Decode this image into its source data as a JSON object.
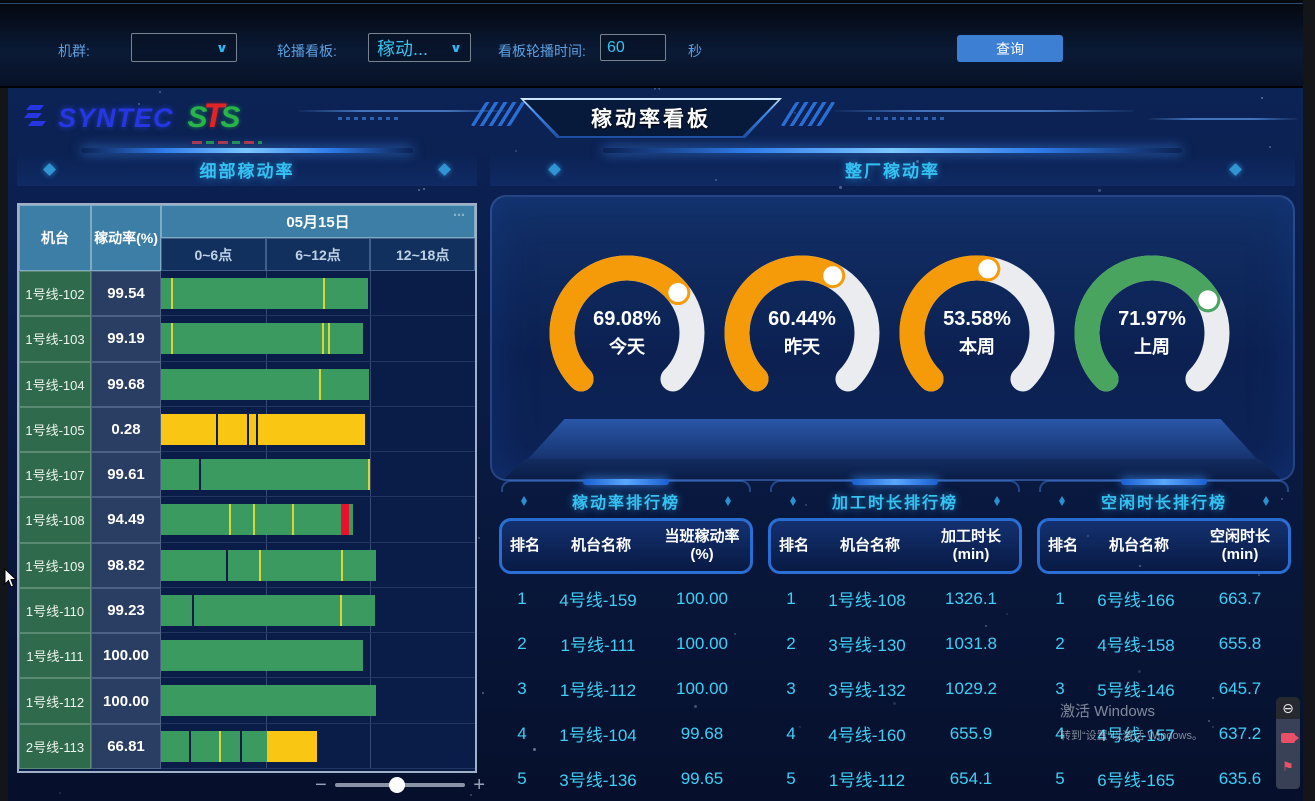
{
  "topbar": {
    "cluster_label": "机群:",
    "cluster_value": "",
    "carousel_label": "轮播看板:",
    "carousel_value": "稼动...",
    "interval_label": "看板轮播时间:",
    "interval_value": "60",
    "interval_unit": "秒",
    "query_button": "查询"
  },
  "header": {
    "logo_syntec": "SYNTEC",
    "logo_sts_s1": "S",
    "logo_sts_t": "T",
    "logo_sts_s2": "S",
    "title": "稼动率看板",
    "collapse_icon": "^"
  },
  "left_panel": {
    "section_title": "细部稼动率",
    "table": {
      "col_machine": "机台",
      "col_rate": "稼动率(%)",
      "date_header": "05月15日",
      "more_icon": "⋯",
      "time_cols": [
        "0~6点",
        "6~12点",
        "12~18点"
      ],
      "timeline_hours": 18,
      "rows": [
        {
          "machine": "1号线-102",
          "rate": "99.54",
          "segments": [
            {
              "c": "green",
              "f": 0,
              "t": 11.85
            }
          ],
          "ticks": [
            {
              "x": 0.55,
              "c": "yellow"
            },
            {
              "x": 9.3,
              "c": "yellow"
            }
          ]
        },
        {
          "machine": "1号线-103",
          "rate": "99.19",
          "segments": [
            {
              "c": "green",
              "f": 0,
              "t": 11.6
            }
          ],
          "ticks": [
            {
              "x": 0.55,
              "c": "yellow"
            },
            {
              "x": 9.25,
              "c": "yellow"
            },
            {
              "x": 9.55,
              "c": "yellow"
            }
          ]
        },
        {
          "machine": "1号线-104",
          "rate": "99.68",
          "segments": [
            {
              "c": "green",
              "f": 0,
              "t": 11.9
            }
          ],
          "ticks": [
            {
              "x": 9.05,
              "c": "yellow"
            }
          ]
        },
        {
          "machine": "1号线-105",
          "rate": "0.28",
          "segments": [
            {
              "c": "yellow",
              "f": 0,
              "t": 11.7
            }
          ],
          "ticks": [
            {
              "x": 3.15,
              "c": "dark"
            },
            {
              "x": 4.95,
              "c": "dark"
            },
            {
              "x": 5.45,
              "c": "dark"
            }
          ]
        },
        {
          "machine": "1号线-107",
          "rate": "99.61",
          "segments": [
            {
              "c": "green",
              "f": 0,
              "t": 12.0
            }
          ],
          "ticks": [
            {
              "x": 2.2,
              "c": "dark"
            },
            {
              "x": 11.85,
              "c": "yellow"
            }
          ]
        },
        {
          "machine": "1号线-108",
          "rate": "94.49",
          "segments": [
            {
              "c": "green",
              "f": 0,
              "t": 10.3
            },
            {
              "c": "red",
              "f": 10.3,
              "t": 10.8
            },
            {
              "c": "green",
              "f": 10.8,
              "t": 11.0
            }
          ],
          "ticks": [
            {
              "x": 3.9,
              "c": "yellow"
            },
            {
              "x": 5.3,
              "c": "yellow"
            },
            {
              "x": 7.5,
              "c": "yellow"
            }
          ]
        },
        {
          "machine": "1号线-109",
          "rate": "98.82",
          "segments": [
            {
              "c": "green",
              "f": 0,
              "t": 12.3
            }
          ],
          "ticks": [
            {
              "x": 3.7,
              "c": "dark"
            },
            {
              "x": 5.6,
              "c": "yellow"
            },
            {
              "x": 10.3,
              "c": "yellow"
            }
          ]
        },
        {
          "machine": "1号线-110",
          "rate": "99.23",
          "segments": [
            {
              "c": "green",
              "f": 0,
              "t": 12.25
            }
          ],
          "ticks": [
            {
              "x": 1.75,
              "c": "dark"
            },
            {
              "x": 10.25,
              "c": "yellow"
            }
          ]
        },
        {
          "machine": "1号线-111",
          "rate": "100.00",
          "segments": [
            {
              "c": "green",
              "f": 0,
              "t": 11.6
            }
          ],
          "ticks": []
        },
        {
          "machine": "1号线-112",
          "rate": "100.00",
          "segments": [
            {
              "c": "green",
              "f": 0,
              "t": 12.35
            }
          ],
          "ticks": []
        },
        {
          "machine": "2号线-113",
          "rate": "66.81",
          "segments": [
            {
              "c": "green",
              "f": 0,
              "t": 6.05
            },
            {
              "c": "yellow",
              "f": 6.05,
              "t": 8.95
            }
          ],
          "ticks": [
            {
              "x": 1.6,
              "c": "dark"
            },
            {
              "x": 3.3,
              "c": "yellow"
            },
            {
              "x": 4.5,
              "c": "dark"
            }
          ]
        }
      ]
    },
    "slider": {
      "zoom_out": "−",
      "zoom_in": "+",
      "position_percent": 48
    }
  },
  "right_panel": {
    "section_title": "整厂稼动率",
    "gauges": [
      {
        "value": "69.08%",
        "label": "今天",
        "percent": 69.08,
        "color": "#F59B0A"
      },
      {
        "value": "60.44%",
        "label": "昨天",
        "percent": 60.44,
        "color": "#F59B0A"
      },
      {
        "value": "53.58%",
        "label": "本周",
        "percent": 53.58,
        "color": "#F59B0A"
      },
      {
        "value": "71.97%",
        "label": "上周",
        "percent": 71.97,
        "color": "#48A45F"
      }
    ],
    "gauge_rest_color": "#EAECEF"
  },
  "rankings": [
    {
      "title": "稼动率排行榜",
      "headers": [
        "排名",
        "机台名称",
        "当班稼动率(%)"
      ],
      "rows": [
        [
          "1",
          "4号线-159",
          "100.00"
        ],
        [
          "2",
          "1号线-111",
          "100.00"
        ],
        [
          "3",
          "1号线-112",
          "100.00"
        ],
        [
          "4",
          "1号线-104",
          "99.68"
        ],
        [
          "5",
          "3号线-136",
          "99.65"
        ]
      ]
    },
    {
      "title": "加工时长排行榜",
      "headers": [
        "排名",
        "机台名称",
        "加工时长(min)"
      ],
      "rows": [
        [
          "1",
          "1号线-108",
          "1326.1"
        ],
        [
          "2",
          "3号线-130",
          "1031.8"
        ],
        [
          "3",
          "3号线-132",
          "1029.2"
        ],
        [
          "4",
          "4号线-160",
          "655.9"
        ],
        [
          "5",
          "1号线-112",
          "654.1"
        ]
      ]
    },
    {
      "title": "空闲时长排行榜",
      "headers": [
        "排名",
        "机台名称",
        "空闲时长(min)"
      ],
      "rows": [
        [
          "1",
          "6号线-166",
          "663.7"
        ],
        [
          "2",
          "4号线-158",
          "655.8"
        ],
        [
          "3",
          "5号线-146",
          "645.7"
        ],
        [
          "4",
          "4号线-157",
          "637.2"
        ],
        [
          "5",
          "6号线-165",
          "635.6"
        ]
      ]
    }
  ],
  "watermark": {
    "line1": "激活 Windows",
    "line2": "转到“设置”以激活 Windows。"
  },
  "colors": {
    "bar_green": "#3A9A60",
    "bar_yellow": "#F8C613",
    "bar_red": "#E8112D",
    "accent_cyan": "#35C1F1",
    "button_blue": "#3D7FD3",
    "gauge_orange": "#F59B0A",
    "gauge_green": "#48A45F"
  }
}
